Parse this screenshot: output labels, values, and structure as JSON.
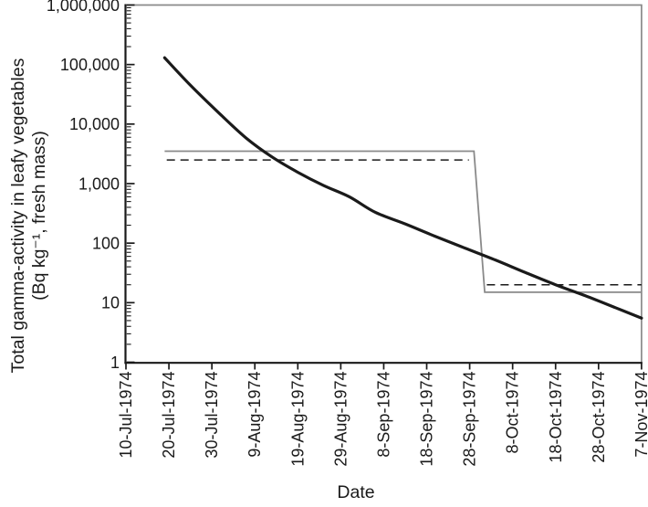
{
  "chart_data": {
    "type": "line",
    "title": "",
    "xlabel": "Date",
    "ylabel": "Total gamma-activity in leafy vegetables (Bq kg⁻¹, fresh mass)",
    "ylabel_lines": [
      "Total gamma-activity in leafy vegetables",
      "(Bq kg⁻¹, fresh mass)"
    ],
    "y_scale": "log",
    "ylim": [
      1,
      1000000
    ],
    "y_tick_values": [
      1,
      10,
      100,
      1000,
      10000,
      100000,
      1000000
    ],
    "y_tick_labels": [
      "1",
      "10",
      "100",
      "1,000",
      "10,000",
      "100,000",
      "1,000,000"
    ],
    "x_tick_labels": [
      "10-Jul-1974",
      "20-Jul-1974",
      "30-Jul-1974",
      "9-Aug-1974",
      "19-Aug-1974",
      "29-Aug-1974",
      "8-Sep-1974",
      "18-Sep-1974",
      "28-Sep-1974",
      "8-Oct-1974",
      "18-Oct-1974",
      "28-Oct-1974",
      "7-Nov-1974"
    ],
    "x_tick_spacing_days": 10,
    "x_range_days": [
      0,
      120
    ],
    "grid": false,
    "legend": "none",
    "series": [
      {
        "name": "gamma-activity-decay-curve",
        "style": "thick-solid-black",
        "points_t_days_vs_bq": [
          [
            9,
            130000
          ],
          [
            15,
            45000
          ],
          [
            22,
            14500
          ],
          [
            28,
            5800
          ],
          [
            34,
            2800
          ],
          [
            40,
            1550
          ],
          [
            46,
            930
          ],
          [
            52,
            600
          ],
          [
            58,
            330
          ],
          [
            65,
            210
          ],
          [
            72,
            130
          ],
          [
            79,
            82
          ],
          [
            86,
            52
          ],
          [
            93,
            32
          ],
          [
            100,
            20
          ],
          [
            107,
            13
          ],
          [
            114,
            8.2
          ],
          [
            120,
            5.5
          ]
        ]
      },
      {
        "name": "step-line-solid",
        "style": "thin-solid-gray",
        "level_before_bq": 3500,
        "level_after_bq": 15,
        "start_t": 9,
        "drop_start_t": 81,
        "drop_end_t": 83.5,
        "end_t": 120
      },
      {
        "name": "step-line-dashed",
        "style": "thin-dashed-black",
        "level_before_bq": 2500,
        "level_after_bq": 20,
        "seg1_start_t": 9.5,
        "seg1_end_t": 79.8,
        "seg2_start_t": 84,
        "seg2_end_t": 120
      }
    ]
  },
  "colors": {
    "background": "#ffffff",
    "axis_black": "#1a1a1a",
    "frame_gray": "#8a8a8a",
    "curve_black": "#1a1a1a",
    "step_solid_gray": "#8a8a8a",
    "step_dashed_black": "#1a1a1a",
    "text": "#1a1a1a"
  }
}
